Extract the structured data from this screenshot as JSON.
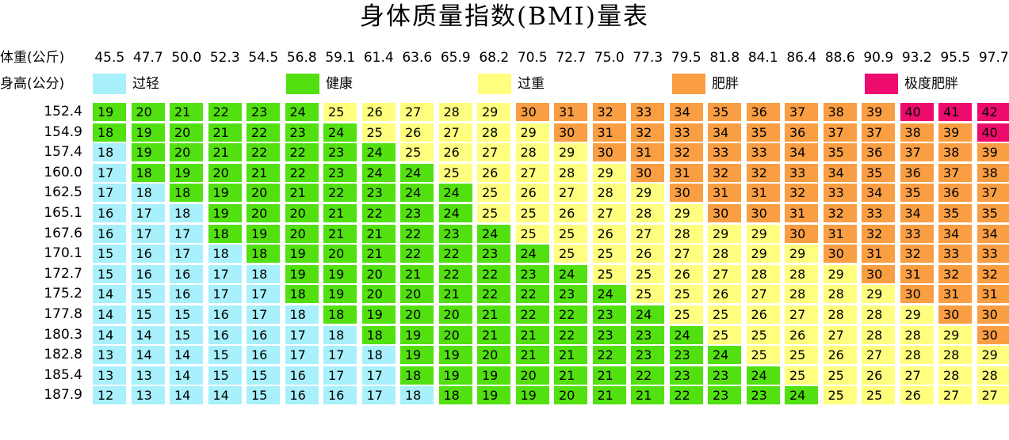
{
  "chart_data": {
    "type": "heatmap",
    "title": "身体质量指数(BMI)量表",
    "xlabel": "体重(公斤)",
    "ylabel": "身高(公分)",
    "x": [
      "45.5",
      "47.7",
      "50.0",
      "52.3",
      "54.5",
      "56.8",
      "59.1",
      "61.4",
      "63.6",
      "65.9",
      "68.2",
      "70.5",
      "72.7",
      "75.0",
      "77.3",
      "79.5",
      "81.8",
      "84.1",
      "86.4",
      "88.6",
      "90.9",
      "93.2",
      "95.5",
      "97.7"
    ],
    "y": [
      "152.4",
      "154.9",
      "157.4",
      "160.0",
      "162.5",
      "165.1",
      "167.6",
      "170.1",
      "172.7",
      "175.2",
      "177.8",
      "180.3",
      "182.8",
      "185.4",
      "187.9"
    ],
    "values": [
      [
        19,
        20,
        21,
        22,
        23,
        24,
        25,
        26,
        27,
        28,
        29,
        30,
        31,
        32,
        33,
        34,
        35,
        36,
        37,
        38,
        39,
        40,
        41,
        42
      ],
      [
        18,
        19,
        20,
        21,
        22,
        23,
        24,
        25,
        26,
        27,
        28,
        29,
        30,
        31,
        32,
        33,
        34,
        35,
        36,
        37,
        37,
        38,
        39,
        40
      ],
      [
        18,
        19,
        20,
        21,
        22,
        22,
        23,
        24,
        25,
        26,
        27,
        28,
        29,
        30,
        31,
        32,
        33,
        33,
        34,
        35,
        36,
        37,
        38,
        39
      ],
      [
        17,
        18,
        19,
        20,
        21,
        22,
        23,
        24,
        24,
        25,
        26,
        27,
        28,
        29,
        30,
        31,
        32,
        32,
        33,
        34,
        35,
        36,
        37,
        38
      ],
      [
        17,
        18,
        18,
        19,
        20,
        21,
        22,
        23,
        24,
        24,
        25,
        26,
        27,
        28,
        29,
        30,
        31,
        31,
        32,
        33,
        34,
        35,
        36,
        37
      ],
      [
        16,
        17,
        18,
        19,
        20,
        20,
        21,
        22,
        23,
        24,
        25,
        25,
        26,
        27,
        28,
        29,
        30,
        30,
        31,
        32,
        33,
        34,
        35,
        35
      ],
      [
        16,
        17,
        17,
        18,
        19,
        20,
        21,
        21,
        22,
        23,
        24,
        25,
        25,
        26,
        27,
        28,
        29,
        29,
        30,
        31,
        32,
        33,
        34,
        34
      ],
      [
        15,
        16,
        17,
        18,
        18,
        19,
        20,
        21,
        22,
        22,
        23,
        24,
        25,
        25,
        26,
        27,
        28,
        29,
        29,
        30,
        31,
        32,
        33,
        33
      ],
      [
        15,
        16,
        16,
        17,
        18,
        19,
        19,
        20,
        21,
        22,
        22,
        23,
        24,
        25,
        25,
        26,
        27,
        28,
        28,
        29,
        30,
        31,
        32,
        32
      ],
      [
        14,
        15,
        16,
        17,
        17,
        18,
        19,
        20,
        20,
        21,
        22,
        22,
        23,
        24,
        25,
        25,
        26,
        27,
        28,
        28,
        29,
        30,
        31,
        31
      ],
      [
        14,
        15,
        15,
        16,
        17,
        18,
        18,
        19,
        20,
        20,
        21,
        22,
        22,
        23,
        24,
        25,
        25,
        26,
        27,
        28,
        28,
        29,
        30,
        30
      ],
      [
        14,
        14,
        15,
        16,
        16,
        17,
        18,
        18,
        19,
        20,
        21,
        21,
        22,
        23,
        23,
        24,
        25,
        25,
        26,
        27,
        28,
        28,
        29,
        30
      ],
      [
        13,
        14,
        14,
        15,
        16,
        17,
        17,
        18,
        19,
        19,
        20,
        21,
        21,
        22,
        23,
        23,
        24,
        25,
        25,
        26,
        27,
        28,
        28,
        29
      ],
      [
        13,
        13,
        14,
        15,
        15,
        16,
        17,
        17,
        18,
        19,
        19,
        20,
        21,
        21,
        22,
        23,
        23,
        24,
        25,
        25,
        26,
        27,
        28,
        28
      ],
      [
        12,
        13,
        14,
        14,
        15,
        16,
        16,
        17,
        18,
        18,
        19,
        19,
        20,
        21,
        21,
        22,
        23,
        23,
        24,
        25,
        25,
        26,
        27,
        27
      ]
    ],
    "legend": [
      {
        "label": "过轻",
        "color": "#a8f0fb",
        "min": 0,
        "max": 18
      },
      {
        "label": "健康",
        "color": "#52e010",
        "min": 18,
        "max": 25
      },
      {
        "label": "过重",
        "color": "#fffe7e",
        "min": 25,
        "max": 30
      },
      {
        "label": "肥胖",
        "color": "#fa9e43",
        "min": 30,
        "max": 40
      },
      {
        "label": "极度肥胖",
        "color": "#ee0b6e",
        "min": 40,
        "max": 99
      }
    ],
    "category_grid": [
      [
        1,
        1,
        1,
        1,
        1,
        1,
        2,
        2,
        2,
        2,
        2,
        3,
        3,
        3,
        3,
        3,
        3,
        3,
        3,
        3,
        3,
        4,
        4,
        4
      ],
      [
        1,
        1,
        1,
        1,
        1,
        1,
        1,
        2,
        2,
        2,
        2,
        2,
        3,
        3,
        3,
        3,
        3,
        3,
        3,
        3,
        3,
        3,
        3,
        4
      ],
      [
        0,
        1,
        1,
        1,
        1,
        1,
        1,
        1,
        2,
        2,
        2,
        2,
        2,
        3,
        3,
        3,
        3,
        3,
        3,
        3,
        3,
        3,
        3,
        3
      ],
      [
        0,
        1,
        1,
        1,
        1,
        1,
        1,
        1,
        1,
        2,
        2,
        2,
        2,
        2,
        3,
        3,
        3,
        3,
        3,
        3,
        3,
        3,
        3,
        3
      ],
      [
        0,
        0,
        1,
        1,
        1,
        1,
        1,
        1,
        1,
        1,
        2,
        2,
        2,
        2,
        2,
        3,
        3,
        3,
        3,
        3,
        3,
        3,
        3,
        3
      ],
      [
        0,
        0,
        0,
        1,
        1,
        1,
        1,
        1,
        1,
        1,
        2,
        2,
        2,
        2,
        2,
        2,
        3,
        3,
        3,
        3,
        3,
        3,
        3,
        3
      ],
      [
        0,
        0,
        0,
        1,
        1,
        1,
        1,
        1,
        1,
        1,
        1,
        2,
        2,
        2,
        2,
        2,
        2,
        2,
        3,
        3,
        3,
        3,
        3,
        3
      ],
      [
        0,
        0,
        0,
        0,
        1,
        1,
        1,
        1,
        1,
        1,
        1,
        1,
        2,
        2,
        2,
        2,
        2,
        2,
        2,
        3,
        3,
        3,
        3,
        3
      ],
      [
        0,
        0,
        0,
        0,
        0,
        1,
        1,
        1,
        1,
        1,
        1,
        1,
        1,
        2,
        2,
        2,
        2,
        2,
        2,
        2,
        3,
        3,
        3,
        3
      ],
      [
        0,
        0,
        0,
        0,
        0,
        1,
        1,
        1,
        1,
        1,
        1,
        1,
        1,
        1,
        2,
        2,
        2,
        2,
        2,
        2,
        2,
        3,
        3,
        3
      ],
      [
        0,
        0,
        0,
        0,
        0,
        0,
        1,
        1,
        1,
        1,
        1,
        1,
        1,
        1,
        1,
        2,
        2,
        2,
        2,
        2,
        2,
        2,
        3,
        3
      ],
      [
        0,
        0,
        0,
        0,
        0,
        0,
        0,
        1,
        1,
        1,
        1,
        1,
        1,
        1,
        1,
        1,
        2,
        2,
        2,
        2,
        2,
        2,
        2,
        3
      ],
      [
        0,
        0,
        0,
        0,
        0,
        0,
        0,
        0,
        1,
        1,
        1,
        1,
        1,
        1,
        1,
        1,
        1,
        2,
        2,
        2,
        2,
        2,
        2,
        2
      ],
      [
        0,
        0,
        0,
        0,
        0,
        0,
        0,
        0,
        1,
        1,
        1,
        1,
        1,
        1,
        1,
        1,
        1,
        1,
        2,
        2,
        2,
        2,
        2,
        2
      ],
      [
        0,
        0,
        0,
        0,
        0,
        0,
        0,
        0,
        0,
        1,
        1,
        1,
        1,
        1,
        1,
        1,
        1,
        1,
        1,
        2,
        2,
        2,
        2,
        2
      ]
    ],
    "grid": false,
    "legend_position": "top"
  }
}
